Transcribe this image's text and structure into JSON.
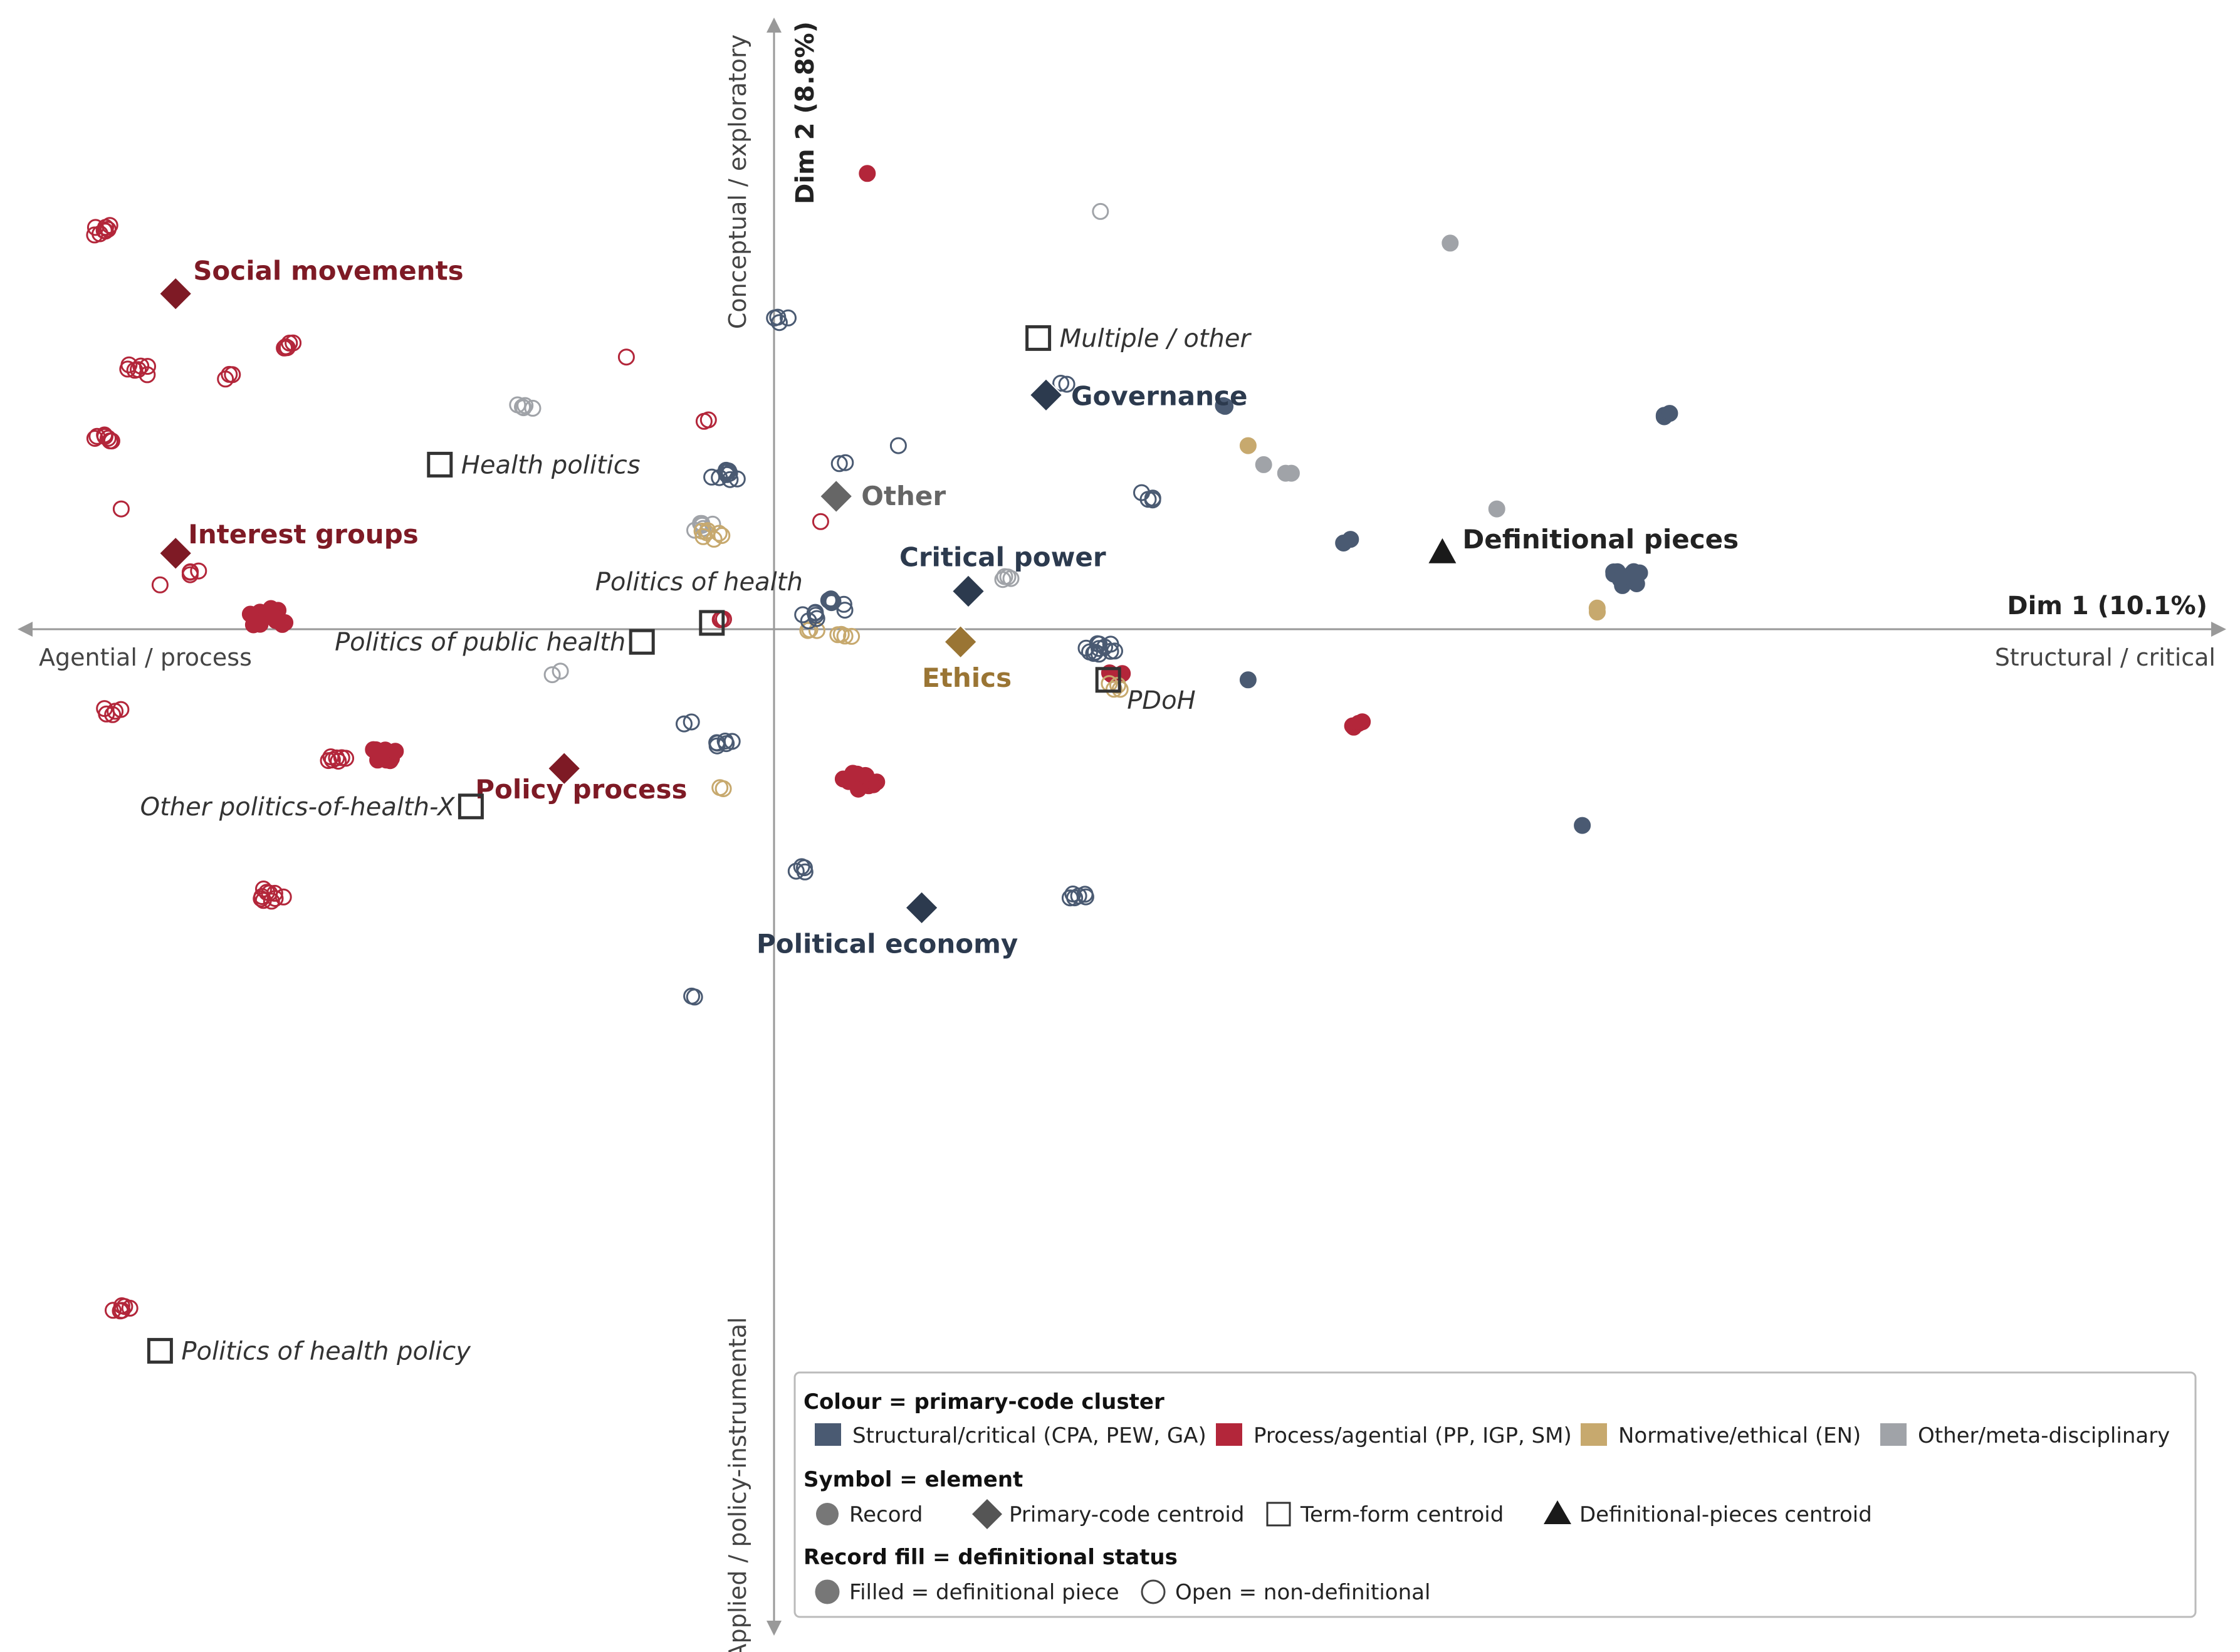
{
  "colors": {
    "structural": "#4a5a72",
    "process": "#b3263a",
    "normative": "#c7a96e",
    "other": "#a0a3a8",
    "structural_dark": "#2c3a4e",
    "process_dark": "#7e1a25",
    "normative_dark": "#9a7534",
    "other_dark": "#666666"
  },
  "chart_data": {
    "type": "scatter",
    "xlabel": "Dim 1 (10.1%)",
    "ylabel": "Dim 2 (8.8%)",
    "x_negative_pole": "Agential / process",
    "x_positive_pole": "Structural / critical",
    "y_positive_pole": "Conceptual / exploratory",
    "y_negative_pole": "Applied / policy-instrumental",
    "xlim": [
      -1.0,
      1.0
    ],
    "ylim": [
      -1.3,
      0.85
    ],
    "grid": false,
    "legend_position": "bottom-right",
    "records": [
      {
        "x": -0.86,
        "y": 0.63,
        "cluster": "process",
        "filled": false,
        "n": 8
      },
      {
        "x": -0.82,
        "y": 0.41,
        "cluster": "process",
        "filled": false,
        "n": 7
      },
      {
        "x": -0.7,
        "y": 0.4,
        "cluster": "process",
        "filled": false,
        "n": 3
      },
      {
        "x": -0.62,
        "y": 0.45,
        "cluster": "process",
        "filled": false,
        "n": 5
      },
      {
        "x": -0.86,
        "y": 0.3,
        "cluster": "process",
        "filled": false,
        "n": 7
      },
      {
        "x": -0.84,
        "y": 0.19,
        "cluster": "process",
        "filled": false,
        "n": 1
      },
      {
        "x": -0.79,
        "y": 0.07,
        "cluster": "process",
        "filled": false,
        "n": 1
      },
      {
        "x": -0.75,
        "y": 0.09,
        "cluster": "process",
        "filled": false,
        "n": 4
      },
      {
        "x": -0.65,
        "y": 0.02,
        "cluster": "process",
        "filled": true,
        "n": 14
      },
      {
        "x": -0.85,
        "y": -0.13,
        "cluster": "process",
        "filled": false,
        "n": 5
      },
      {
        "x": -0.5,
        "y": -0.2,
        "cluster": "process",
        "filled": true,
        "n": 9
      },
      {
        "x": -0.56,
        "y": -0.21,
        "cluster": "process",
        "filled": false,
        "n": 7
      },
      {
        "x": -0.64,
        "y": -0.42,
        "cluster": "process",
        "filled": false,
        "n": 10
      },
      {
        "x": -0.84,
        "y": -1.07,
        "cluster": "process",
        "filled": false,
        "n": 6
      },
      {
        "x": -0.19,
        "y": 0.43,
        "cluster": "process",
        "filled": false,
        "n": 1
      },
      {
        "x": -0.09,
        "y": 0.33,
        "cluster": "process",
        "filled": false,
        "n": 2
      },
      {
        "x": -0.07,
        "y": 0.02,
        "cluster": "process",
        "filled": false,
        "n": 3
      },
      {
        "x": 0.06,
        "y": 0.17,
        "cluster": "process",
        "filled": false,
        "n": 1
      },
      {
        "x": 0.11,
        "y": -0.24,
        "cluster": "process",
        "filled": true,
        "n": 12
      },
      {
        "x": 0.12,
        "y": 0.72,
        "cluster": "process",
        "filled": true,
        "n": 1
      },
      {
        "x": 0.44,
        "y": -0.07,
        "cluster": "process",
        "filled": true,
        "n": 3
      },
      {
        "x": 0.75,
        "y": -0.15,
        "cluster": "process",
        "filled": true,
        "n": 4
      },
      {
        "x": -0.32,
        "y": 0.35,
        "cluster": "other",
        "filled": false,
        "n": 5
      },
      {
        "x": -0.09,
        "y": 0.16,
        "cluster": "other",
        "filled": false,
        "n": 6
      },
      {
        "x": -0.28,
        "y": -0.07,
        "cluster": "other",
        "filled": false,
        "n": 2
      },
      {
        "x": 0.3,
        "y": 0.08,
        "cluster": "other",
        "filled": false,
        "n": 4
      },
      {
        "x": 0.42,
        "y": 0.66,
        "cluster": "other",
        "filled": false,
        "n": 1
      },
      {
        "x": 0.87,
        "y": 0.61,
        "cluster": "other",
        "filled": true,
        "n": 1
      },
      {
        "x": 0.63,
        "y": 0.26,
        "cluster": "other",
        "filled": true,
        "n": 1
      },
      {
        "x": 0.66,
        "y": 0.25,
        "cluster": "other",
        "filled": true,
        "n": 2
      },
      {
        "x": 0.93,
        "y": 0.19,
        "cluster": "other",
        "filled": true,
        "n": 1
      },
      {
        "x": -0.08,
        "y": 0.15,
        "cluster": "normative",
        "filled": false,
        "n": 7
      },
      {
        "x": 0.05,
        "y": 0.0,
        "cluster": "normative",
        "filled": false,
        "n": 3
      },
      {
        "x": 0.09,
        "y": -0.01,
        "cluster": "normative",
        "filled": false,
        "n": 4
      },
      {
        "x": -0.07,
        "y": -0.25,
        "cluster": "normative",
        "filled": false,
        "n": 2
      },
      {
        "x": 0.44,
        "y": -0.09,
        "cluster": "normative",
        "filled": false,
        "n": 4
      },
      {
        "x": 0.61,
        "y": 0.29,
        "cluster": "normative",
        "filled": true,
        "n": 1
      },
      {
        "x": 1.06,
        "y": 0.03,
        "cluster": "normative",
        "filled": true,
        "n": 2
      },
      {
        "x": 0.01,
        "y": 0.49,
        "cluster": "structural",
        "filled": false,
        "n": 4
      },
      {
        "x": -0.06,
        "y": 0.24,
        "cluster": "structural",
        "filled": false,
        "n": 10
      },
      {
        "x": 0.09,
        "y": 0.26,
        "cluster": "structural",
        "filled": false,
        "n": 2
      },
      {
        "x": 0.16,
        "y": 0.29,
        "cluster": "structural",
        "filled": false,
        "n": 1
      },
      {
        "x": 0.37,
        "y": 0.39,
        "cluster": "structural",
        "filled": false,
        "n": 2
      },
      {
        "x": 0.48,
        "y": 0.21,
        "cluster": "structural",
        "filled": false,
        "n": 4
      },
      {
        "x": 0.05,
        "y": 0.02,
        "cluster": "structural",
        "filled": false,
        "n": 6
      },
      {
        "x": 0.09,
        "y": 0.04,
        "cluster": "structural",
        "filled": false,
        "n": 10
      },
      {
        "x": 0.42,
        "y": -0.03,
        "cluster": "structural",
        "filled": false,
        "n": 12
      },
      {
        "x": -0.11,
        "y": -0.15,
        "cluster": "structural",
        "filled": false,
        "n": 2
      },
      {
        "x": -0.06,
        "y": -0.18,
        "cluster": "structural",
        "filled": false,
        "n": 6
      },
      {
        "x": 0.03,
        "y": -0.38,
        "cluster": "structural",
        "filled": false,
        "n": 4
      },
      {
        "x": 0.39,
        "y": -0.42,
        "cluster": "structural",
        "filled": false,
        "n": 6
      },
      {
        "x": -0.1,
        "y": -0.58,
        "cluster": "structural",
        "filled": false,
        "n": 2
      },
      {
        "x": 0.58,
        "y": 0.35,
        "cluster": "structural",
        "filled": true,
        "n": 2
      },
      {
        "x": 0.74,
        "y": 0.14,
        "cluster": "structural",
        "filled": true,
        "n": 2
      },
      {
        "x": 0.61,
        "y": -0.08,
        "cluster": "structural",
        "filled": true,
        "n": 1
      },
      {
        "x": 1.15,
        "y": 0.34,
        "cluster": "structural",
        "filled": true,
        "n": 3
      },
      {
        "x": 1.1,
        "y": 0.08,
        "cluster": "structural",
        "filled": true,
        "n": 10
      },
      {
        "x": 1.04,
        "y": -0.31,
        "cluster": "structural",
        "filled": true,
        "n": 1
      }
    ],
    "primary_code_centroids": [
      {
        "label": "Social movements",
        "x": -0.77,
        "y": 0.53,
        "cluster": "process"
      },
      {
        "label": "Interest groups",
        "x": -0.77,
        "y": 0.12,
        "cluster": "process"
      },
      {
        "label": "Policy process",
        "x": -0.27,
        "y": -0.22,
        "cluster": "process"
      },
      {
        "label": "Governance",
        "x": 0.35,
        "y": 0.37,
        "cluster": "structural"
      },
      {
        "label": "Other",
        "x": 0.08,
        "y": 0.21,
        "cluster": "other"
      },
      {
        "label": "Critical power",
        "x": 0.25,
        "y": 0.06,
        "cluster": "structural"
      },
      {
        "label": "Ethics",
        "x": 0.24,
        "y": -0.02,
        "cluster": "normative"
      },
      {
        "label": "Political economy",
        "x": 0.19,
        "y": -0.44,
        "cluster": "structural"
      }
    ],
    "term_form_centroids": [
      {
        "label": "Multiple / other",
        "x": 0.34,
        "y": 0.46
      },
      {
        "label": "Health politics",
        "x": -0.43,
        "y": 0.26
      },
      {
        "label": "Politics of health",
        "x": -0.08,
        "y": 0.01
      },
      {
        "label": "Politics of public health",
        "x": -0.17,
        "y": -0.02
      },
      {
        "label": "PDoH",
        "x": 0.43,
        "y": -0.08
      },
      {
        "label": "Other politics-of-health-X",
        "x": -0.39,
        "y": -0.28
      },
      {
        "label": "Politics of health policy",
        "x": -0.79,
        "y": -1.14
      }
    ],
    "definitional_pieces_centroid": {
      "label": "Definitional pieces",
      "x": 0.86,
      "y": 0.12
    },
    "legend": {
      "colour_title": "Colour = primary-code cluster",
      "colour_items": [
        {
          "key": "structural",
          "label": "Structural/critical (CPA, PEW, GA)"
        },
        {
          "key": "process",
          "label": "Process/agential (PP, IGP, SM)"
        },
        {
          "key": "normative",
          "label": "Normative/ethical (EN)"
        },
        {
          "key": "other",
          "label": "Other/meta-disciplinary"
        }
      ],
      "symbol_title": "Symbol = element",
      "symbol_items": [
        {
          "shape": "circle",
          "label": "Record"
        },
        {
          "shape": "diamond",
          "label": "Primary-code centroid"
        },
        {
          "shape": "square",
          "label": "Term-form centroid"
        },
        {
          "shape": "triangle",
          "label": "Definitional-pieces centroid"
        }
      ],
      "fill_title": "Record fill = definitional status",
      "fill_items": [
        {
          "filled": true,
          "label": "Filled = definitional piece"
        },
        {
          "filled": false,
          "label": "Open = non-definitional"
        }
      ]
    }
  }
}
